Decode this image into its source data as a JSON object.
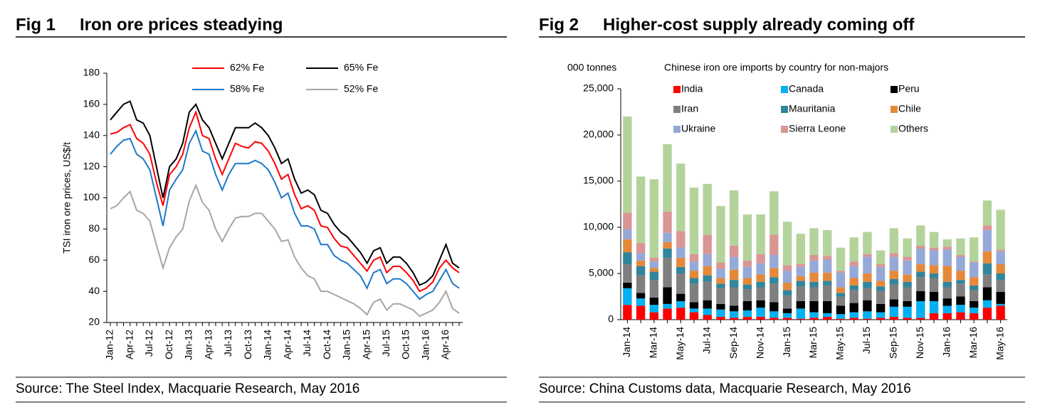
{
  "chart_data": [
    {
      "type": "line",
      "figure_label": "Fig 1",
      "title": "Iron ore prices steadying",
      "ylabel": "TSI iron ore prices, US$/t",
      "source": "Source: The Steel Index, Macquarie Research, May 2016",
      "categories": [
        "Jan-12",
        null,
        null,
        "Apr-12",
        null,
        null,
        "Jul-12",
        null,
        null,
        "Oct-12",
        null,
        null,
        "Jan-13",
        null,
        null,
        "Apr-13",
        null,
        null,
        "Jul-13",
        null,
        null,
        "Oct-13",
        null,
        null,
        "Jan-14",
        null,
        null,
        "Apr-14",
        null,
        null,
        "Jul-14",
        null,
        null,
        "Oct-14",
        null,
        null,
        "Jan-15",
        null,
        null,
        "Apr-15",
        null,
        null,
        "Jul-15",
        null,
        null,
        "Oct-15",
        null,
        null,
        "Jan-16",
        null,
        null,
        "Apr-16",
        null,
        null
      ],
      "series": [
        {
          "name": "62% Fe",
          "color": "#ff0000",
          "values": [
            141,
            142,
            145,
            147,
            138,
            135,
            128,
            110,
            95,
            115,
            120,
            128,
            145,
            155,
            140,
            138,
            125,
            115,
            125,
            135,
            133,
            132,
            136,
            135,
            130,
            122,
            112,
            115,
            102,
            93,
            95,
            92,
            82,
            81,
            74,
            69,
            68,
            63,
            58,
            53,
            60,
            62,
            52,
            56,
            56,
            52,
            47,
            40,
            42,
            46,
            55,
            60,
            55,
            52
          ]
        },
        {
          "name": "65% Fe",
          "color": "#000000",
          "values": [
            150,
            155,
            160,
            162,
            150,
            148,
            140,
            120,
            100,
            120,
            125,
            135,
            155,
            160,
            150,
            145,
            135,
            125,
            135,
            145,
            145,
            145,
            148,
            145,
            140,
            132,
            122,
            125,
            112,
            103,
            105,
            102,
            92,
            90,
            83,
            78,
            75,
            70,
            65,
            58,
            66,
            68,
            58,
            62,
            62,
            58,
            52,
            44,
            46,
            50,
            60,
            70,
            58,
            55
          ]
        },
        {
          "name": "58% Fe",
          "color": "#1f78c8",
          "values": [
            128,
            133,
            137,
            138,
            128,
            125,
            118,
            100,
            82,
            105,
            112,
            118,
            135,
            143,
            130,
            128,
            115,
            105,
            115,
            122,
            122,
            122,
            124,
            122,
            118,
            110,
            100,
            103,
            90,
            82,
            82,
            80,
            70,
            70,
            63,
            60,
            58,
            54,
            50,
            42,
            52,
            54,
            45,
            48,
            48,
            45,
            40,
            35,
            38,
            40,
            47,
            54,
            45,
            42
          ]
        },
        {
          "name": "52% Fe",
          "color": "#a6a6a6",
          "values": [
            93,
            95,
            100,
            104,
            92,
            90,
            85,
            70,
            55,
            68,
            75,
            80,
            98,
            108,
            97,
            92,
            80,
            72,
            80,
            87,
            88,
            88,
            90,
            90,
            85,
            80,
            72,
            73,
            62,
            55,
            50,
            48,
            40,
            40,
            38,
            36,
            34,
            32,
            29,
            25,
            33,
            35,
            28,
            32,
            32,
            30,
            28,
            24,
            26,
            28,
            33,
            40,
            29,
            26
          ]
        }
      ],
      "ylim": [
        20,
        180
      ],
      "yticks": [
        20,
        40,
        60,
        80,
        100,
        120,
        140,
        160,
        180
      ]
    },
    {
      "type": "stacked_bar",
      "figure_label": "Fig 2",
      "title": "Higher-cost supply already coming off",
      "ylabel": "000 tonnes",
      "subtitle": "Chinese iron ore imports by country for non-majors",
      "source": "Source: China Customs data, Macquarie Research, May 2016",
      "categories": [
        "Jan-14",
        null,
        "Mar-14",
        null,
        "May-14",
        null,
        "Jul-14",
        null,
        "Sep-14",
        null,
        "Nov-14",
        null,
        "Jan-15",
        null,
        "Mar-15",
        null,
        "May-15",
        null,
        "Jul-15",
        null,
        "Sep-15",
        null,
        "Nov-15",
        null,
        "Jan-16",
        null,
        "Mar-16",
        null,
        "May-16"
      ],
      "series": [
        {
          "name": "India",
          "color": "#ff0000",
          "values": [
            1600,
            1500,
            800,
            1200,
            1300,
            800,
            500,
            300,
            200,
            300,
            300,
            200,
            200,
            100,
            200,
            300,
            100,
            200,
            100,
            200,
            300,
            200,
            200,
            700,
            700,
            800,
            700,
            1300,
            1500
          ]
        },
        {
          "name": "Canada",
          "color": "#00b0f0",
          "values": [
            1800,
            800,
            800,
            500,
            700,
            400,
            700,
            800,
            700,
            700,
            1000,
            700,
            500,
            1100,
            600,
            400,
            500,
            600,
            800,
            600,
            1100,
            1200,
            1800,
            1300,
            800,
            800,
            600,
            800,
            200
          ]
        },
        {
          "name": "Peru",
          "color": "#000000",
          "values": [
            600,
            600,
            800,
            1800,
            800,
            700,
            900,
            600,
            600,
            1000,
            800,
            1000,
            500,
            800,
            1200,
            1300,
            900,
            1000,
            1200,
            900,
            800,
            600,
            1100,
            1000,
            800,
            900,
            700,
            1400,
            1300
          ]
        },
        {
          "name": "Iran",
          "color": "#7f7f7f",
          "values": [
            2000,
            1900,
            1900,
            3200,
            2200,
            2000,
            2000,
            1700,
            2000,
            1300,
            1400,
            2000,
            1400,
            1600,
            1500,
            1700,
            1000,
            1400,
            1300,
            1400,
            1600,
            1500,
            1500,
            1500,
            1200,
            1400,
            1200,
            1400,
            1300
          ]
        },
        {
          "name": "Mauritania",
          "color": "#31859c",
          "values": [
            1300,
            1000,
            900,
            1000,
            700,
            600,
            700,
            500,
            800,
            500,
            600,
            700,
            600,
            600,
            600,
            500,
            400,
            500,
            700,
            500,
            600,
            600,
            600,
            500,
            600,
            400,
            500,
            1200,
            700
          ]
        },
        {
          "name": "Chile",
          "color": "#e6883a",
          "values": [
            1400,
            600,
            400,
            700,
            1000,
            800,
            1000,
            600,
            1100,
            700,
            800,
            1000,
            800,
            500,
            1000,
            900,
            600,
            800,
            900,
            600,
            900,
            800,
            800,
            900,
            1700,
            1000,
            900,
            1300,
            1000
          ]
        },
        {
          "name": "Ukraine",
          "color": "#95a9d8",
          "values": [
            1100,
            800,
            700,
            1000,
            1100,
            1000,
            1300,
            1000,
            1400,
            1200,
            1200,
            1400,
            1300,
            1000,
            1300,
            1400,
            1600,
            1300,
            1800,
            1500,
            1500,
            1500,
            1700,
            1600,
            1800,
            1500,
            1600,
            2300,
            1400
          ]
        },
        {
          "name": "Sierra Leone",
          "color": "#d99694",
          "values": [
            1800,
            1100,
            400,
            2300,
            1800,
            800,
            2100,
            700,
            1200,
            700,
            1000,
            2200,
            600,
            300,
            600,
            400,
            200,
            500,
            300,
            300,
            400,
            400,
            300,
            300,
            300,
            200,
            100,
            500,
            200
          ]
        },
        {
          "name": "Others",
          "color": "#b3d39b",
          "values": [
            10400,
            7200,
            8500,
            7300,
            7300,
            7200,
            5500,
            6100,
            6000,
            5000,
            4300,
            4700,
            4700,
            3300,
            2900,
            2800,
            2500,
            2600,
            2400,
            1500,
            2700,
            2000,
            2200,
            1700,
            800,
            1800,
            2600,
            2700,
            4300
          ]
        }
      ],
      "ylim": [
        0,
        25000
      ],
      "yticks": [
        0,
        {
          "value": 5000,
          "label": "5,000"
        },
        {
          "value": 10000,
          "label": "10,000"
        },
        {
          "value": 15000,
          "label": "15,000"
        },
        {
          "value": 20000,
          "label": "20,000"
        },
        {
          "value": 25000,
          "label": "25,000"
        }
      ]
    }
  ]
}
